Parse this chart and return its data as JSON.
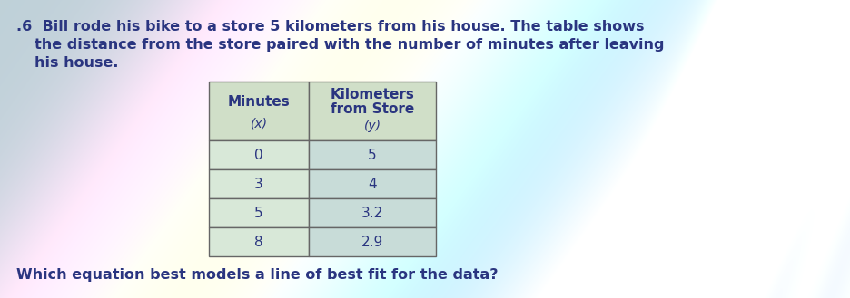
{
  "problem_number": ".6",
  "line1": "Bill rode his bike to a store 5 kilometers from his house. The table shows",
  "line2": "the distance from the store paired with the number of minutes after leaving",
  "line3": "his house.",
  "col1_header_line1": "Minutes",
  "col1_header_line2": "(x)",
  "col2_header_line1": "Kilometers",
  "col2_header_line2": "from Store",
  "col2_header_line3": "(y)",
  "data_rows": [
    [
      "0",
      "5"
    ],
    [
      "3",
      "4"
    ],
    [
      "5",
      "3.2"
    ],
    [
      "8",
      "2.9"
    ]
  ],
  "footer": "Which equation best models a line of best fit for the data?",
  "bg_color_left": "#c8d8e8",
  "table_header_bg": "#d0dfc8",
  "table_data_left_bg": "#d8e8d8",
  "table_data_right_bg": "#c8dcd8",
  "table_border_color": "#666666",
  "text_color": "#2a3580",
  "paragraph_fontsize": 11.5,
  "footer_fontsize": 11.5,
  "table_fontsize": 11,
  "header_fontsize": 11
}
